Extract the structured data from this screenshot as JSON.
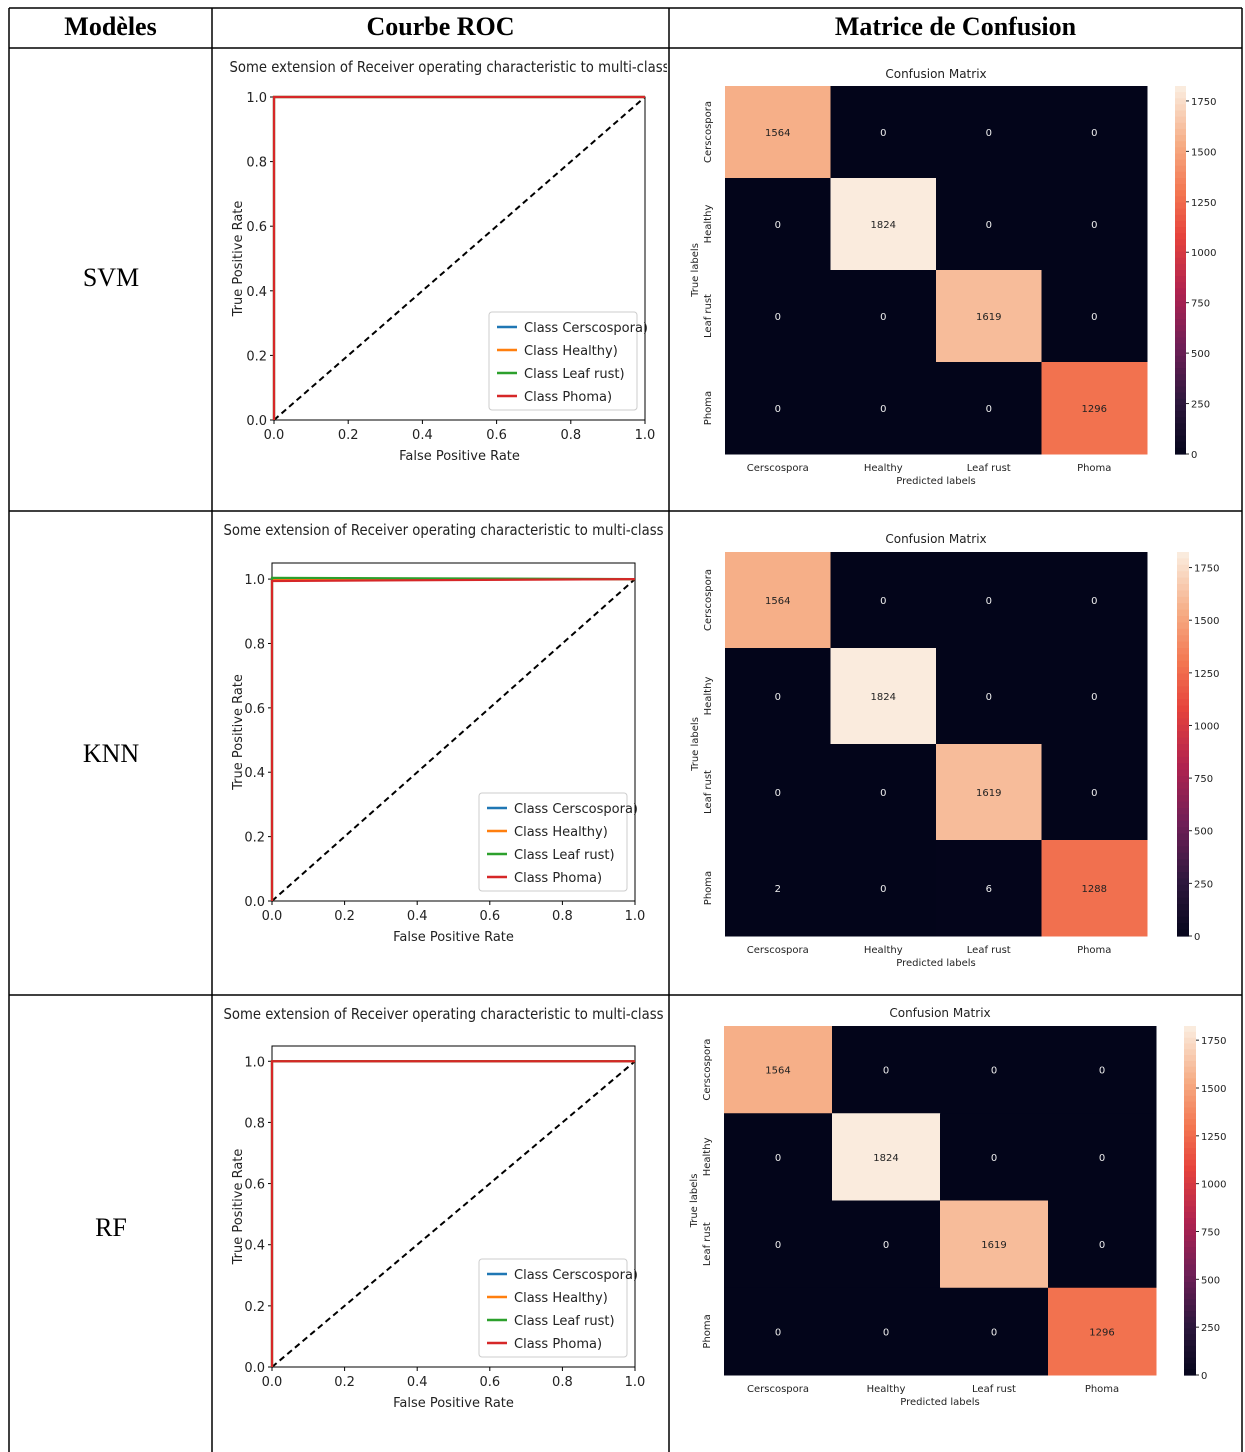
{
  "table": {
    "headers": [
      "Modèles",
      "Courbe ROC",
      "Matrice de Confusion"
    ],
    "rows": [
      {
        "model": "SVM"
      },
      {
        "model": "KNN"
      },
      {
        "model": "RF"
      }
    ]
  },
  "chart_data": [
    {
      "type": "line",
      "model": "SVM",
      "title": "Some extension of Receiver operating characteristic to multi-class",
      "xlabel": "False Positive Rate",
      "ylabel": "True Positive Rate",
      "xlim": [
        0,
        1
      ],
      "ylim": [
        0,
        1
      ],
      "xticks": [
        "0.0",
        "0.2",
        "0.4",
        "0.6",
        "0.8",
        "1.0"
      ],
      "yticks": [
        "0.0",
        "0.2",
        "0.4",
        "0.6",
        "0.8",
        "1.0"
      ],
      "legend_position": "lower-right",
      "series": [
        {
          "name": "Class Cerscospora)",
          "color": "#1f77b4",
          "x": [
            0,
            0,
            1
          ],
          "y": [
            0,
            1,
            1
          ]
        },
        {
          "name": "Class Healthy)",
          "color": "#ff7f0e",
          "x": [
            0,
            0,
            1
          ],
          "y": [
            0,
            1,
            1
          ]
        },
        {
          "name": "Class Leaf rust)",
          "color": "#2ca02c",
          "x": [
            0,
            0,
            1
          ],
          "y": [
            0,
            1,
            1
          ]
        },
        {
          "name": "Class Phoma)",
          "color": "#d62728",
          "x": [
            0,
            0,
            1
          ],
          "y": [
            0,
            1,
            1
          ]
        }
      ],
      "diagonal": {
        "x": [
          0,
          1
        ],
        "y": [
          0,
          1
        ],
        "color": "#000000",
        "style": "dashed"
      }
    },
    {
      "type": "heatmap",
      "model": "SVM",
      "title": "Confusion Matrix",
      "xlabel": "Predicted labels",
      "ylabel": "True labels",
      "x_categories": [
        "Cerscospora",
        "Healthy",
        "Leaf rust",
        "Phoma"
      ],
      "y_categories": [
        "Cerscospora",
        "Healthy",
        "Leaf rust",
        "Phoma"
      ],
      "values": [
        [
          1564,
          0,
          0,
          0
        ],
        [
          0,
          1824,
          0,
          0
        ],
        [
          0,
          0,
          1619,
          0
        ],
        [
          0,
          0,
          0,
          1296
        ]
      ],
      "colorbar_ticks": [
        0,
        250,
        500,
        750,
        1000,
        1250,
        1500,
        1750
      ],
      "vmax": 1824
    },
    {
      "type": "line",
      "model": "KNN",
      "title": "Some extension of Receiver operating characteristic to multi-class",
      "xlabel": "False Positive Rate",
      "ylabel": "True Positive Rate",
      "xlim": [
        0,
        1
      ],
      "ylim": [
        0,
        1.05
      ],
      "xticks": [
        "0.0",
        "0.2",
        "0.4",
        "0.6",
        "0.8",
        "1.0"
      ],
      "yticks": [
        "0.0",
        "0.2",
        "0.4",
        "0.6",
        "0.8",
        "1.0"
      ],
      "legend_position": "lower-right",
      "series": [
        {
          "name": "Class Cerscospora)",
          "color": "#1f77b4",
          "x": [
            0,
            0,
            1
          ],
          "y": [
            0,
            0.999,
            1
          ]
        },
        {
          "name": "Class Healthy)",
          "color": "#ff7f0e",
          "x": [
            0,
            0,
            1
          ],
          "y": [
            0,
            1,
            1
          ]
        },
        {
          "name": "Class Leaf rust)",
          "color": "#2ca02c",
          "x": [
            0,
            0,
            1
          ],
          "y": [
            0,
            1.004,
            1
          ]
        },
        {
          "name": "Class Phoma)",
          "color": "#d62728",
          "x": [
            0,
            0,
            1
          ],
          "y": [
            0,
            0.994,
            1
          ]
        }
      ],
      "diagonal": {
        "x": [
          0,
          1
        ],
        "y": [
          0,
          1
        ],
        "color": "#000000",
        "style": "dashed"
      }
    },
    {
      "type": "heatmap",
      "model": "KNN",
      "title": "Confusion Matrix",
      "xlabel": "Predicted labels",
      "ylabel": "True labels",
      "x_categories": [
        "Cerscospora",
        "Healthy",
        "Leaf rust",
        "Phoma"
      ],
      "y_categories": [
        "Cerscospora",
        "Healthy",
        "Leaf rust",
        "Phoma"
      ],
      "values": [
        [
          1564,
          0,
          0,
          0
        ],
        [
          0,
          1824,
          0,
          0
        ],
        [
          0,
          0,
          1619,
          0
        ],
        [
          2,
          0,
          6,
          1288
        ]
      ],
      "colorbar_ticks": [
        0,
        250,
        500,
        750,
        1000,
        1250,
        1500,
        1750
      ],
      "vmax": 1824
    },
    {
      "type": "line",
      "model": "RF",
      "title": "Some extension of Receiver operating characteristic to multi-class",
      "xlabel": "False Positive Rate",
      "ylabel": "True Positive Rate",
      "xlim": [
        0,
        1
      ],
      "ylim": [
        0,
        1.05
      ],
      "xticks": [
        "0.0",
        "0.2",
        "0.4",
        "0.6",
        "0.8",
        "1.0"
      ],
      "yticks": [
        "0.0",
        "0.2",
        "0.4",
        "0.6",
        "0.8",
        "1.0"
      ],
      "legend_position": "lower-right",
      "series": [
        {
          "name": "Class Cerscospora)",
          "color": "#1f77b4",
          "x": [
            0,
            0,
            1
          ],
          "y": [
            0,
            1,
            1
          ]
        },
        {
          "name": "Class Healthy)",
          "color": "#ff7f0e",
          "x": [
            0,
            0,
            1
          ],
          "y": [
            0,
            1,
            1
          ]
        },
        {
          "name": "Class Leaf rust)",
          "color": "#2ca02c",
          "x": [
            0,
            0,
            1
          ],
          "y": [
            0,
            1,
            1
          ]
        },
        {
          "name": "Class Phoma)",
          "color": "#d62728",
          "x": [
            0,
            0,
            1
          ],
          "y": [
            0,
            1,
            1
          ]
        }
      ],
      "diagonal": {
        "x": [
          0,
          1
        ],
        "y": [
          0,
          1
        ],
        "color": "#000000",
        "style": "dashed"
      }
    },
    {
      "type": "heatmap",
      "model": "RF",
      "title": "Confusion Matrix",
      "xlabel": "Predicted labels",
      "ylabel": "True labels",
      "x_categories": [
        "Cerscospora",
        "Healthy",
        "Leaf rust",
        "Phoma"
      ],
      "y_categories": [
        "Cerscospora",
        "Healthy",
        "Leaf rust",
        "Phoma"
      ],
      "values": [
        [
          1564,
          0,
          0,
          0
        ],
        [
          0,
          1824,
          0,
          0
        ],
        [
          0,
          0,
          1619,
          0
        ],
        [
          0,
          0,
          0,
          1296
        ]
      ],
      "colorbar_ticks": [
        0,
        250,
        500,
        750,
        1000,
        1250,
        1500,
        1750
      ],
      "vmax": 1824
    }
  ]
}
